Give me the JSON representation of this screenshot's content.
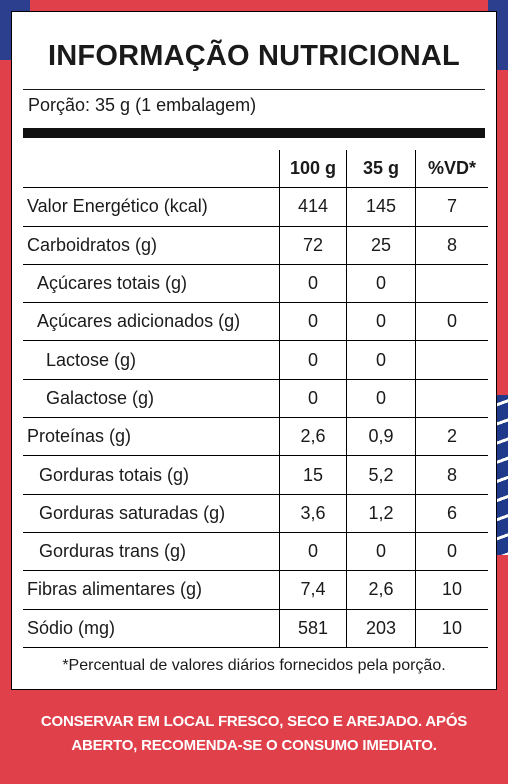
{
  "title": "INFORMAÇÃO NUTRICIONAL",
  "portion": "Porção: 35 g (1 embalagem)",
  "columns": [
    "100 g",
    "35 g",
    "%VD*"
  ],
  "rows": [
    {
      "name": "Valor Energético (kcal)",
      "per100": "414",
      "portion": "145",
      "vd": "7"
    },
    {
      "name": "Carboidratos (g)",
      "per100": "72",
      "portion": "25",
      "vd": "8"
    },
    {
      "name": "Açúcares totais (g)",
      "per100": "0",
      "portion": "0",
      "vd": ""
    },
    {
      "name": "Açúcares adicionados (g)",
      "per100": "0",
      "portion": "0",
      "vd": "0"
    },
    {
      "name": "Lactose (g)",
      "per100": "0",
      "portion": "0",
      "vd": ""
    },
    {
      "name": "Galactose (g)",
      "per100": "0",
      "portion": "0",
      "vd": ""
    },
    {
      "name": "Proteínas (g)",
      "per100": "2,6",
      "portion": "0,9",
      "vd": "2"
    },
    {
      "name": "Gorduras totais (g)",
      "per100": "15",
      "portion": "5,2",
      "vd": "8"
    },
    {
      "name": "Gorduras saturadas (g)",
      "per100": "3,6",
      "portion": "1,2",
      "vd": "6"
    },
    {
      "name": "Gorduras trans (g)",
      "per100": "0",
      "portion": "0",
      "vd": "0"
    },
    {
      "name": "Fibras alimentares (g)",
      "per100": "7,4",
      "portion": "2,6",
      "vd": "10"
    },
    {
      "name": "Sódio (mg)",
      "per100": "581",
      "portion": "203",
      "vd": "10"
    }
  ],
  "footnote": "*Percentual de valores diários fornecidos pela porção.",
  "storage": {
    "line1": "CONSERVAR EM LOCAL FRESCO, SECO E AREJADO. APÓS",
    "line2": "ABERTO, RECOMENDA-SE O CONSUMO IMEDIATO."
  },
  "colors": {
    "background": "#e0404a",
    "accent_blue": "#2b3f8e",
    "panel": "#ffffff",
    "text": "#1a1a1a"
  }
}
